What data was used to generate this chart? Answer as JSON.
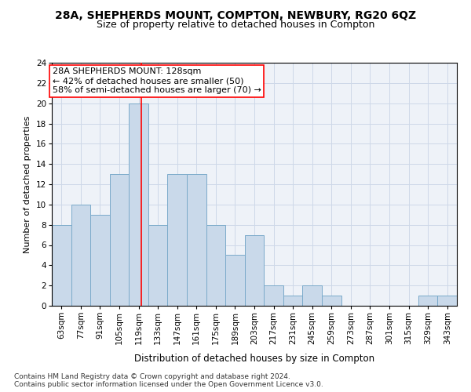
{
  "title1": "28A, SHEPHERDS MOUNT, COMPTON, NEWBURY, RG20 6QZ",
  "title2": "Size of property relative to detached houses in Compton",
  "xlabel": "Distribution of detached houses by size in Compton",
  "ylabel": "Number of detached properties",
  "bins": [
    63,
    77,
    91,
    105,
    119,
    133,
    147,
    161,
    175,
    189,
    203,
    217,
    231,
    245,
    259,
    273,
    287,
    301,
    315,
    329,
    343
  ],
  "counts": [
    8,
    10,
    9,
    13,
    20,
    8,
    13,
    13,
    8,
    5,
    7,
    2,
    1,
    2,
    1,
    0,
    0,
    0,
    0,
    1,
    1
  ],
  "bin_width": 14,
  "bar_color": "#c9d9ea",
  "bar_edge_color": "#7aaaca",
  "red_line_x": 128,
  "annotation_line1": "28A SHEPHERDS MOUNT: 128sqm",
  "annotation_line2": "← 42% of detached houses are smaller (50)",
  "annotation_line3": "58% of semi-detached houses are larger (70) →",
  "ylim": [
    0,
    24
  ],
  "yticks": [
    0,
    2,
    4,
    6,
    8,
    10,
    12,
    14,
    16,
    18,
    20,
    22,
    24
  ],
  "footnote": "Contains HM Land Registry data © Crown copyright and database right 2024.\nContains public sector information licensed under the Open Government Licence v3.0.",
  "grid_color": "#cdd8e8",
  "background_color": "#eef2f8",
  "title1_fontsize": 10,
  "title2_fontsize": 9,
  "xlabel_fontsize": 8.5,
  "ylabel_fontsize": 8,
  "tick_fontsize": 7.5,
  "annotation_fontsize": 8,
  "footnote_fontsize": 6.5
}
